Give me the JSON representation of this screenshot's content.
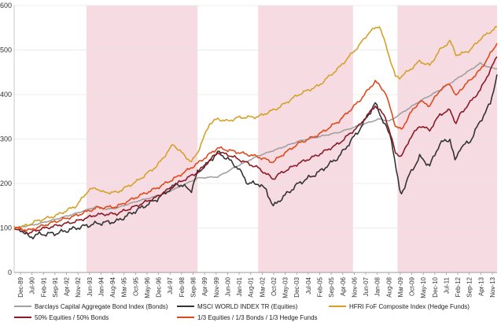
{
  "chart_data": {
    "type": "line",
    "title": "",
    "xlabel": "",
    "ylabel": "",
    "ylim": [
      0,
      600
    ],
    "yticks": [
      0,
      100,
      200,
      300,
      400,
      500,
      600
    ],
    "x_start": 1989.917,
    "x_end": 2013.833,
    "xtick_labels": [
      "Dec-89",
      "Jul-90",
      "Feb-91",
      "Sep-91",
      "Apr-92",
      "Nov-92",
      "Jun-93",
      "Jan-94",
      "Aug-94",
      "Mar-95",
      "Oct-95",
      "May-96",
      "Dec-96",
      "Jul-97",
      "Feb-98",
      "Sep-98",
      "Apr-99",
      "Nov-99",
      "Jun-00",
      "Jan-01",
      "Aug-01",
      "Mar-02",
      "Oct-02",
      "May-03",
      "Dec-03",
      "Jul-04",
      "Feb-05",
      "Sep-05",
      "Apr-06",
      "Nov-06",
      "Jun-07",
      "Jan-08",
      "Aug-08",
      "Mar-09",
      "Oct-09",
      "May-10",
      "Dec-10",
      "Jul-11",
      "Feb-12",
      "Sep-12",
      "Apr-13",
      "Nov-13"
    ],
    "shaded_periods": [
      {
        "start": 1993.5,
        "end": 1999.0,
        "color": "#f6dbe3"
      },
      {
        "start": 2002.0,
        "end": 2006.7,
        "color": "#f6dbe3"
      },
      {
        "start": 2008.9,
        "end": 2013.95,
        "color": "#f6dbe3"
      }
    ],
    "series": [
      {
        "name": "Barclays Capital Aggregate Bond Index (Bonds)",
        "color": "#a0a0a0",
        "points": [
          [
            1989.92,
            100
          ],
          [
            1991.0,
            108
          ],
          [
            1992.0,
            120
          ],
          [
            1993.0,
            133
          ],
          [
            1994.0,
            148
          ],
          [
            1994.5,
            142
          ],
          [
            1995.0,
            145
          ],
          [
            1996.0,
            160
          ],
          [
            1997.0,
            172
          ],
          [
            1998.0,
            190
          ],
          [
            1999.0,
            212
          ],
          [
            2000.0,
            215
          ],
          [
            2001.0,
            240
          ],
          [
            2002.0,
            262
          ],
          [
            2003.0,
            278
          ],
          [
            2004.0,
            295
          ],
          [
            2005.0,
            305
          ],
          [
            2006.0,
            315
          ],
          [
            2007.0,
            330
          ],
          [
            2008.0,
            345
          ],
          [
            2008.5,
            340
          ],
          [
            2009.0,
            355
          ],
          [
            2010.0,
            385
          ],
          [
            2011.0,
            410
          ],
          [
            2012.0,
            440
          ],
          [
            2013.0,
            470
          ],
          [
            2013.5,
            460
          ],
          [
            2013.83,
            458
          ]
        ]
      },
      {
        "name": "MSCI WORLD INDEX TR (Equities)",
        "color": "#333333",
        "points": [
          [
            1989.92,
            100
          ],
          [
            1990.3,
            95
          ],
          [
            1990.7,
            78
          ],
          [
            1991.0,
            85
          ],
          [
            1992.0,
            88
          ],
          [
            1993.0,
            100
          ],
          [
            1994.0,
            110
          ],
          [
            1995.0,
            115
          ],
          [
            1996.0,
            140
          ],
          [
            1997.0,
            165
          ],
          [
            1998.0,
            200
          ],
          [
            1998.7,
            185
          ],
          [
            1999.0,
            225
          ],
          [
            1999.5,
            245
          ],
          [
            2000.0,
            270
          ],
          [
            2000.5,
            255
          ],
          [
            2001.0,
            235
          ],
          [
            2001.5,
            200
          ],
          [
            2002.0,
            200
          ],
          [
            2002.4,
            185
          ],
          [
            2002.75,
            148
          ],
          [
            2003.0,
            160
          ],
          [
            2004.0,
            200
          ],
          [
            2005.0,
            225
          ],
          [
            2006.0,
            260
          ],
          [
            2007.0,
            320
          ],
          [
            2007.8,
            380
          ],
          [
            2008.2,
            340
          ],
          [
            2008.6,
            300
          ],
          [
            2009.0,
            185
          ],
          [
            2009.1,
            178
          ],
          [
            2009.5,
            220
          ],
          [
            2010.0,
            260
          ],
          [
            2010.5,
            240
          ],
          [
            2011.0,
            290
          ],
          [
            2011.5,
            300
          ],
          [
            2011.75,
            250
          ],
          [
            2012.0,
            280
          ],
          [
            2012.5,
            295
          ],
          [
            2013.0,
            340
          ],
          [
            2013.5,
            380
          ],
          [
            2013.83,
            445
          ]
        ]
      },
      {
        "name": "HFRI FoF Composite Index (Hedge Funds)",
        "color": "#d4a22a",
        "points": [
          [
            1989.92,
            100
          ],
          [
            1990.5,
            105
          ],
          [
            1991.0,
            115
          ],
          [
            1992.0,
            128
          ],
          [
            1993.0,
            150
          ],
          [
            1993.6,
            185
          ],
          [
            1994.0,
            190
          ],
          [
            1994.3,
            180
          ],
          [
            1995.0,
            180
          ],
          [
            1996.0,
            205
          ],
          [
            1997.0,
            240
          ],
          [
            1997.8,
            288
          ],
          [
            1998.3,
            265
          ],
          [
            1998.7,
            248
          ],
          [
            1999.0,
            270
          ],
          [
            1999.6,
            335
          ],
          [
            2000.0,
            345
          ],
          [
            2000.5,
            340
          ],
          [
            2001.0,
            348
          ],
          [
            2002.0,
            350
          ],
          [
            2003.0,
            370
          ],
          [
            2004.0,
            400
          ],
          [
            2005.0,
            420
          ],
          [
            2006.0,
            460
          ],
          [
            2007.0,
            510
          ],
          [
            2007.5,
            540
          ],
          [
            2008.0,
            555
          ],
          [
            2008.4,
            500
          ],
          [
            2008.8,
            440
          ],
          [
            2009.0,
            438
          ],
          [
            2009.5,
            455
          ],
          [
            2010.0,
            475
          ],
          [
            2010.5,
            465
          ],
          [
            2011.0,
            500
          ],
          [
            2011.5,
            520
          ],
          [
            2011.8,
            490
          ],
          [
            2012.0,
            490
          ],
          [
            2012.5,
            500
          ],
          [
            2013.0,
            525
          ],
          [
            2013.83,
            552
          ]
        ]
      },
      {
        "name": "50% Equities / 50% Bonds",
        "color": "#8b1a25",
        "points": [
          [
            1989.92,
            100
          ],
          [
            1990.7,
            88
          ],
          [
            1991.0,
            95
          ],
          [
            1992.0,
            105
          ],
          [
            1993.0,
            115
          ],
          [
            1994.0,
            130
          ],
          [
            1995.0,
            132
          ],
          [
            1996.0,
            150
          ],
          [
            1997.0,
            170
          ],
          [
            1998.0,
            200
          ],
          [
            1999.0,
            225
          ],
          [
            2000.0,
            270
          ],
          [
            2000.5,
            265
          ],
          [
            2001.0,
            255
          ],
          [
            2002.0,
            235
          ],
          [
            2002.75,
            210
          ],
          [
            2003.0,
            220
          ],
          [
            2004.0,
            245
          ],
          [
            2005.0,
            265
          ],
          [
            2006.0,
            290
          ],
          [
            2007.0,
            330
          ],
          [
            2007.8,
            375
          ],
          [
            2008.3,
            350
          ],
          [
            2008.8,
            270
          ],
          [
            2009.1,
            260
          ],
          [
            2009.5,
            300
          ],
          [
            2010.0,
            330
          ],
          [
            2010.5,
            320
          ],
          [
            2011.0,
            355
          ],
          [
            2011.5,
            365
          ],
          [
            2011.8,
            335
          ],
          [
            2012.0,
            355
          ],
          [
            2013.0,
            410
          ],
          [
            2013.83,
            485
          ]
        ]
      },
      {
        "name": "1/3 Equities / 1/3 Bonds / 1/3 Hedge Funds",
        "color": "#e04a1a",
        "points": [
          [
            1989.92,
            100
          ],
          [
            1990.7,
            95
          ],
          [
            1991.0,
            100
          ],
          [
            1992.0,
            115
          ],
          [
            1993.0,
            128
          ],
          [
            1994.0,
            145
          ],
          [
            1995.0,
            148
          ],
          [
            1996.0,
            170
          ],
          [
            1997.0,
            190
          ],
          [
            1998.0,
            215
          ],
          [
            1999.0,
            245
          ],
          [
            2000.0,
            280
          ],
          [
            2000.5,
            275
          ],
          [
            2001.0,
            270
          ],
          [
            2002.0,
            260
          ],
          [
            2002.75,
            248
          ],
          [
            2003.0,
            258
          ],
          [
            2004.0,
            290
          ],
          [
            2005.0,
            310
          ],
          [
            2006.0,
            340
          ],
          [
            2007.0,
            385
          ],
          [
            2007.8,
            430
          ],
          [
            2008.3,
            405
          ],
          [
            2008.8,
            330
          ],
          [
            2009.1,
            320
          ],
          [
            2009.5,
            355
          ],
          [
            2010.0,
            385
          ],
          [
            2010.5,
            375
          ],
          [
            2011.0,
            410
          ],
          [
            2011.5,
            425
          ],
          [
            2011.8,
            395
          ],
          [
            2012.0,
            410
          ],
          [
            2013.0,
            455
          ],
          [
            2013.83,
            515
          ]
        ]
      }
    ],
    "legend": [
      {
        "label": "Barclays Capital Aggregate Bond Index (Bonds)",
        "color": "#a0a0a0"
      },
      {
        "label": "MSCI WORLD INDEX TR (Equities)",
        "color": "#333333"
      },
      {
        "label": "HFRI FoF Composite Index (Hedge Funds)",
        "color": "#d4a22a"
      },
      {
        "label": "50% Equities / 50% Bonds",
        "color": "#8b1a25"
      },
      {
        "label": "1/3 Equities / 1/3 Bonds / 1/3 Hedge Funds",
        "color": "#e04a1a"
      }
    ]
  }
}
